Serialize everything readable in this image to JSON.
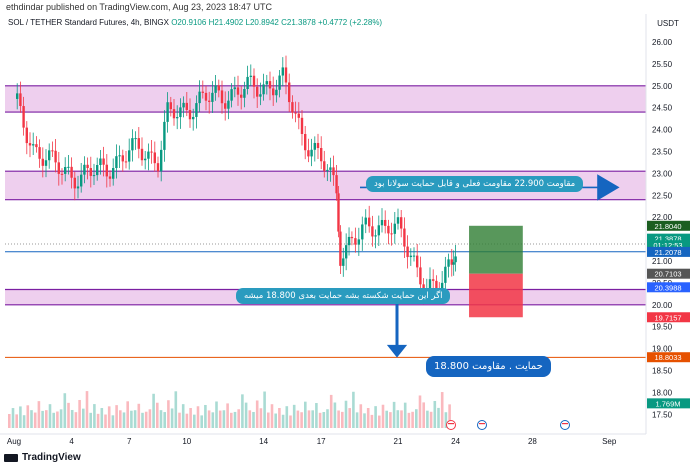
{
  "header": {
    "published": "ethdindar published on TradingView.com, Aug 23, 2023 18:47 UTC",
    "symbol": "SOL / TETHER Standard Futures, 4h, BINGX",
    "open": "O20.9106",
    "high": "H21.4902",
    "low": "L20.8942",
    "close": "C21.3878",
    "change": "+0.4772 (+2.28%)"
  },
  "footer": {
    "brand": "TradingView",
    "logo_icon": "tradingview-logo-icon"
  },
  "annotations": {
    "resistance_note": "مقاومت 22.900 مقاومت فعلی و قابل حمایت سولانا بود",
    "breakdown_note": "اگر این حمایت شکسته بشه حمایت بعدی 18.800 میشه",
    "support_note": "18.800 حمایت . مقاومت"
  },
  "colors": {
    "zone": "#e8bfe8",
    "zone_border": "#7b1fa2",
    "up": "#089981",
    "down": "#f23645",
    "orange_line": "#e65100",
    "arrow": "#1565c0",
    "tp": "#2e7d32",
    "sl": "#f23645"
  },
  "chart_data": {
    "type": "candlestick",
    "title": "SOL / TETHER Standard Futures, 4h, BINGX",
    "currency": "USDT",
    "ylim": [
      17.2,
      26.2
    ],
    "y_ticks": [
      "17.50",
      "18.00",
      "18.50",
      "19.00",
      "19.50",
      "20.00",
      "20.50",
      "21.00",
      "21.50",
      "22.00",
      "22.50",
      "23.00",
      "23.50",
      "24.00",
      "24.50",
      "25.00",
      "25.50",
      "26.00"
    ],
    "x_ticks": [
      {
        "label": "Aug",
        "day": 0
      },
      {
        "label": "4",
        "day": 3
      },
      {
        "label": "7",
        "day": 6
      },
      {
        "label": "10",
        "day": 9
      },
      {
        "label": "14",
        "day": 13
      },
      {
        "label": "17",
        "day": 16
      },
      {
        "label": "21",
        "day": 20
      },
      {
        "label": "24",
        "day": 23
      },
      {
        "label": "28",
        "day": 27
      },
      {
        "label": "Sep",
        "day": 31
      }
    ],
    "zones": [
      {
        "name": "upper-resistance",
        "low": 24.4,
        "high": 25.0
      },
      {
        "name": "middle-resistance",
        "low": 22.4,
        "high": 23.05
      },
      {
        "name": "support",
        "low": 20.0,
        "high": 20.35
      }
    ],
    "lines": [
      {
        "name": "support-18-8",
        "value": 18.8,
        "color": "#e65100"
      },
      {
        "name": "blue-level",
        "value": 21.21,
        "color": "#1565c0"
      },
      {
        "name": "dotted-price",
        "value": 21.3878,
        "color": "#999999"
      }
    ],
    "position": {
      "entry": 20.71,
      "target": 21.804,
      "stop": 19.7157,
      "start_day": 23.7,
      "end_day": 26.5
    },
    "price_labels": [
      {
        "value": "21.8040",
        "price": 21.804,
        "color": "#1b5e20"
      },
      {
        "value": "21.3878",
        "price": 21.51,
        "color": "#089981"
      },
      {
        "value": "01:12:53",
        "price": 21.36,
        "color": "#089981"
      },
      {
        "value": "21.2078",
        "price": 21.2078,
        "color": "#1565c0"
      },
      {
        "value": "20.7103",
        "price": 20.71,
        "color": "#555555"
      },
      {
        "value": "20.3988",
        "price": 20.4,
        "color": "#2962ff"
      },
      {
        "value": "19.7157",
        "price": 19.7157,
        "color": "#f23645"
      },
      {
        "value": "18.8033",
        "price": 18.8033,
        "color": "#e65100"
      },
      {
        "value": "1.769M",
        "price": 17.75,
        "color": "#089981"
      }
    ],
    "candles_path": [
      [
        0,
        24.7
      ],
      [
        1,
        23.6
      ],
      [
        2,
        23.2
      ],
      [
        3,
        23.0
      ],
      [
        3.5,
        22.9
      ],
      [
        4.5,
        23.1
      ],
      [
        5.5,
        23.3
      ],
      [
        6.5,
        23.6
      ],
      [
        7.5,
        23.3
      ],
      [
        8,
        24.3
      ],
      [
        9,
        24.5
      ],
      [
        10,
        24.7
      ],
      [
        11,
        24.8
      ],
      [
        12,
        24.9
      ],
      [
        13,
        25.0
      ],
      [
        14,
        25.1
      ],
      [
        14.5,
        24.5
      ],
      [
        15,
        23.9
      ],
      [
        16,
        23.3
      ],
      [
        16.8,
        22.6
      ],
      [
        17,
        21.2
      ],
      [
        17.6,
        21.5
      ],
      [
        18.5,
        21.7
      ],
      [
        19.5,
        21.9
      ],
      [
        20,
        21.7
      ],
      [
        20.5,
        21.2
      ],
      [
        21,
        20.8
      ],
      [
        21.5,
        20.5
      ],
      [
        22,
        20.3
      ],
      [
        22.3,
        20.5
      ],
      [
        22.8,
        20.9
      ],
      [
        23,
        21.39
      ]
    ],
    "volume_levels": [
      0.25,
      0.3,
      0.2,
      0.35,
      0.15,
      0.4,
      0.28,
      0.22,
      0.5,
      0.3,
      0.25,
      0.6,
      0.18,
      0.33,
      0.27,
      0.9,
      0.45,
      0.3,
      0.22,
      0.55,
      0.35,
      0.75,
      0.25,
      0.4
    ]
  }
}
